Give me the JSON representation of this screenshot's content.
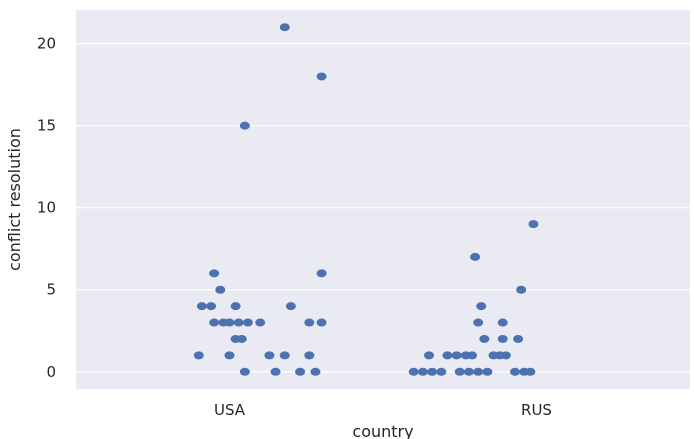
{
  "chart_data": {
    "type": "scatter",
    "style": "strip",
    "title": "",
    "xlabel": "country",
    "ylabel": "conflict resolution",
    "categories": [
      "USA",
      "RUS"
    ],
    "ylim": [
      -1.05,
      22.05
    ],
    "yticks": [
      0,
      5,
      10,
      15,
      20
    ],
    "grid": true,
    "background": "#eaeaf2",
    "grid_color": "#ffffff",
    "marker_color": "#4c72b0",
    "points": [
      {
        "category": "USA",
        "jitter": 0.18,
        "value": 21
      },
      {
        "category": "USA",
        "jitter": 0.3,
        "value": 18
      },
      {
        "category": "USA",
        "jitter": 0.05,
        "value": 15
      },
      {
        "category": "USA",
        "jitter": -0.05,
        "value": 6
      },
      {
        "category": "USA",
        "jitter": 0.3,
        "value": 6
      },
      {
        "category": "USA",
        "jitter": -0.03,
        "value": 5
      },
      {
        "category": "USA",
        "jitter": -0.09,
        "value": 4
      },
      {
        "category": "USA",
        "jitter": -0.06,
        "value": 4
      },
      {
        "category": "USA",
        "jitter": 0.02,
        "value": 4
      },
      {
        "category": "USA",
        "jitter": 0.2,
        "value": 4
      },
      {
        "category": "USA",
        "jitter": -0.05,
        "value": 3
      },
      {
        "category": "USA",
        "jitter": -0.02,
        "value": 3
      },
      {
        "category": "USA",
        "jitter": 0.0,
        "value": 3
      },
      {
        "category": "USA",
        "jitter": 0.03,
        "value": 3
      },
      {
        "category": "USA",
        "jitter": 0.06,
        "value": 3
      },
      {
        "category": "USA",
        "jitter": 0.1,
        "value": 3
      },
      {
        "category": "USA",
        "jitter": 0.26,
        "value": 3
      },
      {
        "category": "USA",
        "jitter": 0.3,
        "value": 3
      },
      {
        "category": "USA",
        "jitter": 0.02,
        "value": 2
      },
      {
        "category": "USA",
        "jitter": 0.04,
        "value": 2
      },
      {
        "category": "USA",
        "jitter": -0.1,
        "value": 1
      },
      {
        "category": "USA",
        "jitter": 0.0,
        "value": 1
      },
      {
        "category": "USA",
        "jitter": 0.13,
        "value": 1
      },
      {
        "category": "USA",
        "jitter": 0.18,
        "value": 1
      },
      {
        "category": "USA",
        "jitter": 0.26,
        "value": 1
      },
      {
        "category": "USA",
        "jitter": 0.05,
        "value": 0
      },
      {
        "category": "USA",
        "jitter": 0.15,
        "value": 0
      },
      {
        "category": "USA",
        "jitter": 0.23,
        "value": 0
      },
      {
        "category": "USA",
        "jitter": 0.28,
        "value": 0
      },
      {
        "category": "RUS",
        "jitter": -0.01,
        "value": 9
      },
      {
        "category": "RUS",
        "jitter": -0.2,
        "value": 7
      },
      {
        "category": "RUS",
        "jitter": -0.05,
        "value": 5
      },
      {
        "category": "RUS",
        "jitter": -0.18,
        "value": 4
      },
      {
        "category": "RUS",
        "jitter": -0.19,
        "value": 3
      },
      {
        "category": "RUS",
        "jitter": -0.11,
        "value": 3
      },
      {
        "category": "RUS",
        "jitter": -0.17,
        "value": 2
      },
      {
        "category": "RUS",
        "jitter": -0.11,
        "value": 2
      },
      {
        "category": "RUS",
        "jitter": -0.06,
        "value": 2
      },
      {
        "category": "RUS",
        "jitter": -0.35,
        "value": 1
      },
      {
        "category": "RUS",
        "jitter": -0.29,
        "value": 1
      },
      {
        "category": "RUS",
        "jitter": -0.26,
        "value": 1
      },
      {
        "category": "RUS",
        "jitter": -0.23,
        "value": 1
      },
      {
        "category": "RUS",
        "jitter": -0.21,
        "value": 1
      },
      {
        "category": "RUS",
        "jitter": -0.14,
        "value": 1
      },
      {
        "category": "RUS",
        "jitter": -0.12,
        "value": 1
      },
      {
        "category": "RUS",
        "jitter": -0.1,
        "value": 1
      },
      {
        "category": "RUS",
        "jitter": -0.4,
        "value": 0
      },
      {
        "category": "RUS",
        "jitter": -0.37,
        "value": 0
      },
      {
        "category": "RUS",
        "jitter": -0.34,
        "value": 0
      },
      {
        "category": "RUS",
        "jitter": -0.31,
        "value": 0
      },
      {
        "category": "RUS",
        "jitter": -0.25,
        "value": 0
      },
      {
        "category": "RUS",
        "jitter": -0.22,
        "value": 0
      },
      {
        "category": "RUS",
        "jitter": -0.19,
        "value": 0
      },
      {
        "category": "RUS",
        "jitter": -0.16,
        "value": 0
      },
      {
        "category": "RUS",
        "jitter": -0.07,
        "value": 0
      },
      {
        "category": "RUS",
        "jitter": -0.04,
        "value": 0
      },
      {
        "category": "RUS",
        "jitter": -0.02,
        "value": 0
      }
    ]
  }
}
